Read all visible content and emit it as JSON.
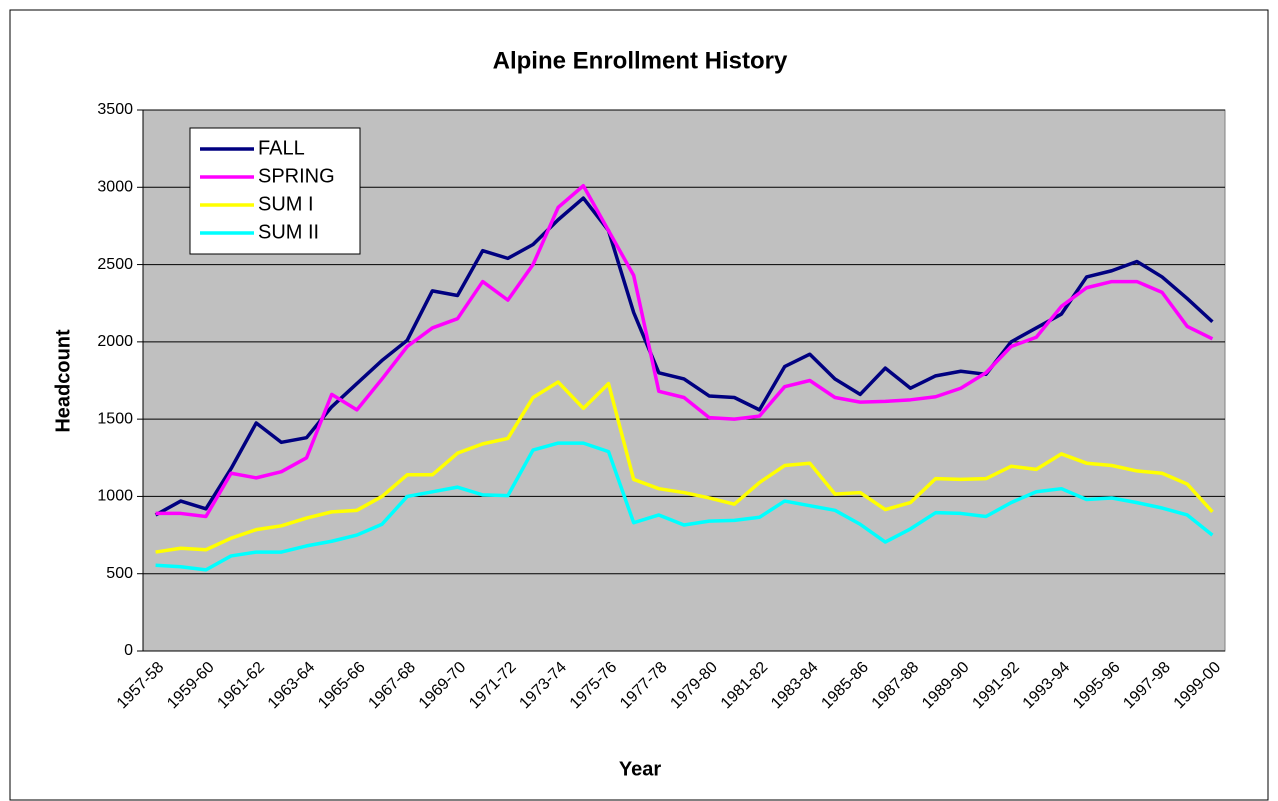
{
  "chart_data": {
    "type": "line",
    "title": "Alpine Enrollment History",
    "x_label": "Year",
    "y_label": "Headcount",
    "categories": [
      "1957-58",
      null,
      "1959-60",
      null,
      "1961-62",
      null,
      "1963-64",
      null,
      "1965-66",
      null,
      "1967-68",
      null,
      "1969-70",
      null,
      "1971-72",
      null,
      "1973-74",
      null,
      "1975-76",
      null,
      "1977-78",
      null,
      "1979-80",
      null,
      "1981-82",
      null,
      "1983-84",
      null,
      "1985-86",
      null,
      "1987-88",
      null,
      "1989-90",
      null,
      "1991-92",
      null,
      "1993-94",
      null,
      "1995-96",
      null,
      "1997-98",
      null,
      "1999-00"
    ],
    "series": [
      {
        "name": "FALL",
        "color": "#000080",
        "values": [
          880,
          970,
          920,
          1180,
          1475,
          1350,
          1380,
          1580,
          1730,
          1880,
          2010,
          2330,
          2300,
          2590,
          2540,
          2630,
          2790,
          2930,
          2720,
          2190,
          1800,
          1760,
          1650,
          1640,
          1560,
          1840,
          1920,
          1760,
          1660,
          1830,
          1700,
          1780,
          1810,
          1790,
          2000,
          2090,
          2180,
          2420,
          2460,
          2520,
          2420,
          2280,
          2130
        ]
      },
      {
        "name": "SPRING",
        "color": "#ff00ff",
        "values": [
          890,
          890,
          870,
          1150,
          1120,
          1160,
          1250,
          1660,
          1560,
          1760,
          1970,
          2090,
          2150,
          2390,
          2270,
          2500,
          2870,
          3010,
          2720,
          2430,
          1680,
          1640,
          1510,
          1500,
          1520,
          1710,
          1750,
          1640,
          1610,
          1615,
          1625,
          1645,
          1700,
          1800,
          1970,
          2030,
          2230,
          2350,
          2390,
          2390,
          2320,
          2100,
          2020
        ]
      },
      {
        "name": "SUM I",
        "color": "#ffff00",
        "values": [
          640,
          665,
          655,
          730,
          785,
          810,
          860,
          900,
          910,
          1000,
          1140,
          1140,
          1280,
          1340,
          1375,
          1640,
          1740,
          1570,
          1730,
          1110,
          1050,
          1025,
          990,
          950,
          1090,
          1200,
          1215,
          1015,
          1025,
          915,
          960,
          1115,
          1110,
          1115,
          1195,
          1175,
          1275,
          1215,
          1200,
          1165,
          1150,
          1080,
          900
        ]
      },
      {
        "name": "SUM II",
        "color": "#00ffff",
        "values": [
          555,
          545,
          525,
          615,
          640,
          640,
          680,
          710,
          750,
          820,
          1000,
          1030,
          1060,
          1010,
          1005,
          1300,
          1345,
          1345,
          1290,
          830,
          880,
          815,
          840,
          845,
          865,
          970,
          940,
          910,
          820,
          705,
          790,
          895,
          890,
          870,
          960,
          1030,
          1050,
          980,
          990,
          960,
          925,
          880,
          750
        ]
      }
    ],
    "ylim": [
      0,
      3500
    ],
    "yticks": [
      0,
      500,
      1000,
      1500,
      2000,
      2500,
      3000,
      3500
    ],
    "grid": true,
    "legend": "upper left"
  }
}
